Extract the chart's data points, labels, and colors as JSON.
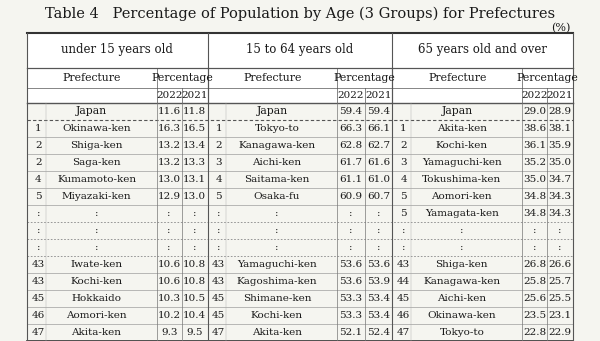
{
  "title": "Table 4   Percentage of Population by Age (3 Groups) for Prefectures",
  "unit_label": "(%)",
  "group_headers": [
    "under 15 years old",
    "15 to 64 years old",
    "65 years old and over"
  ],
  "col_headers": [
    "Prefecture",
    "Percentage",
    "",
    "Prefecture",
    "Percentage",
    "",
    "Prefecture",
    "Percentage",
    ""
  ],
  "year_headers": [
    "2022",
    "2021",
    "2022",
    "2021",
    "2022",
    "2021"
  ],
  "japan_row": [
    "Japan",
    "11.6",
    "11.8",
    "Japan",
    "59.4",
    "59.4",
    "Japan",
    "29.0",
    "28.9"
  ],
  "data_rows": [
    [
      "1",
      "Okinawa-ken",
      "16.3",
      "16.5",
      "1",
      "Tokyo-to",
      "66.3",
      "66.1",
      "1",
      "Akita-ken",
      "38.6",
      "38.1"
    ],
    [
      "2",
      "Shiga-ken",
      "13.2",
      "13.4",
      "2",
      "Kanagawa-ken",
      "62.8",
      "62.7",
      "2",
      "Kochi-ken",
      "36.1",
      "35.9"
    ],
    [
      "2",
      "Saga-ken",
      "13.2",
      "13.3",
      "3",
      "Aichi-ken",
      "61.7",
      "61.6",
      "3",
      "Yamaguchi-ken",
      "35.2",
      "35.0"
    ],
    [
      "4",
      "Kumamoto-ken",
      "13.0",
      "13.1",
      "4",
      "Saitama-ken",
      "61.1",
      "61.0",
      "4",
      "Tokushima-ken",
      "35.0",
      "34.7"
    ],
    [
      "5",
      "Miyazaki-ken",
      "12.9",
      "13.0",
      "5",
      "Osaka-fu",
      "60.9",
      "60.7",
      "5",
      "Aomori-ken",
      "34.8",
      "34.3"
    ],
    [
      ":",
      ":",
      ":",
      ":",
      ":",
      ":",
      ":",
      ":",
      "5",
      "Yamagata-ken",
      "34.8",
      "34.3"
    ],
    [
      ":",
      ":",
      ":",
      ":",
      ":",
      ":",
      ":",
      ":",
      ":",
      ":",
      ":",
      ":"
    ],
    [
      ":",
      ":",
      ":",
      ":",
      ":",
      ":",
      ":",
      ":",
      ":",
      ":",
      ":",
      ":"
    ],
    [
      "43",
      "Iwate-ken",
      "10.6",
      "10.8",
      "43",
      "Yamaguchi-ken",
      "53.6",
      "53.6",
      "43",
      "Shiga-ken",
      "26.8",
      "26.6"
    ],
    [
      "43",
      "Kochi-ken",
      "10.6",
      "10.8",
      "43",
      "Kagoshima-ken",
      "53.6",
      "53.9",
      "44",
      "Kanagawa-ken",
      "25.8",
      "25.7"
    ],
    [
      "45",
      "Hokkaido",
      "10.3",
      "10.5",
      "45",
      "Shimane-ken",
      "53.3",
      "53.4",
      "45",
      "Aichi-ken",
      "25.6",
      "25.5"
    ],
    [
      "46",
      "Aomori-ken",
      "10.2",
      "10.4",
      "45",
      "Kochi-ken",
      "53.3",
      "53.4",
      "46",
      "Okinawa-ken",
      "23.5",
      "23.1"
    ],
    [
      "47",
      "Akita-ken",
      "9.3",
      "9.5",
      "47",
      "Akita-ken",
      "52.1",
      "52.4",
      "47",
      "Tokyo-to",
      "22.8",
      "22.9"
    ]
  ],
  "bg_color": "#f5f5f0",
  "header_color": "#ffffff",
  "text_color": "#1a1a1a",
  "border_color": "#555555",
  "title_fontsize": 10.5,
  "header_fontsize": 8.5,
  "cell_fontsize": 8.0
}
